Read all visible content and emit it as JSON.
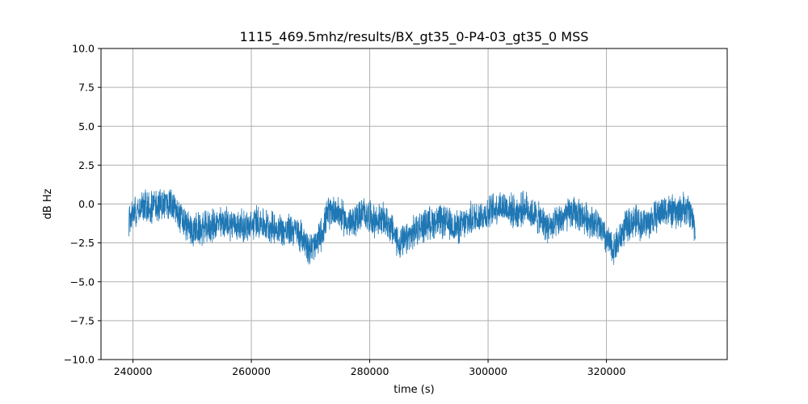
{
  "chart_data": {
    "type": "line",
    "title": "1115_469.5mhz/results/BX_gt35_0-P4-03_gt35_0 MSS",
    "xlabel": "time (s)",
    "ylabel": "dB Hz",
    "xlim": [
      234600,
      340400
    ],
    "ylim": [
      -10.0,
      10.0
    ],
    "grid": true,
    "legend": "none",
    "x_ticks": [
      240000,
      260000,
      280000,
      300000,
      320000
    ],
    "x_tick_labels": [
      "240000",
      "260000",
      "280000",
      "300000",
      "320000"
    ],
    "y_ticks": [
      10.0,
      7.5,
      5.0,
      2.5,
      0.0,
      -2.5,
      -5.0,
      -7.5,
      -10.0
    ],
    "y_tick_labels": [
      "10.0",
      "7.5",
      "5.0",
      "2.5",
      "0.0",
      "−2.5",
      "−5.0",
      "−7.5",
      "−10.0"
    ],
    "series": [
      {
        "color": "#1f77b4",
        "noise_amplitude": 1.2,
        "x": [
          239300,
          240000,
          241000,
          242000,
          243000,
          244000,
          245000,
          246000,
          247000,
          248000,
          249000,
          250000,
          252000,
          254000,
          256000,
          258000,
          260000,
          261000,
          262000,
          264000,
          266000,
          267000,
          268000,
          269000,
          270000,
          271000,
          272000,
          273000,
          274000,
          275000,
          276000,
          277000,
          278000,
          279000,
          280000,
          281000,
          282000,
          283000,
          284000,
          285000,
          286000,
          287000,
          288000,
          290000,
          292000,
          294000,
          295000,
          296000,
          297000,
          298000,
          299000,
          300000,
          301000,
          302000,
          303000,
          304000,
          305000,
          306000,
          307000,
          308000,
          309000,
          310000,
          311000,
          312000,
          313000,
          314000,
          315000,
          316000,
          317000,
          318000,
          319000,
          320000,
          321000,
          322000,
          323000,
          324000,
          325000,
          326000,
          327000,
          328000,
          329000,
          330000,
          331000,
          332000,
          333000,
          334000,
          335000
        ],
        "y": [
          -1.0,
          -0.5,
          -0.2,
          -0.1,
          -0.3,
          0.0,
          -0.1,
          0.1,
          -0.3,
          -0.9,
          -1.4,
          -1.7,
          -1.6,
          -1.3,
          -1.2,
          -1.4,
          -1.5,
          -1.0,
          -1.3,
          -1.5,
          -1.8,
          -1.6,
          -1.9,
          -2.3,
          -2.9,
          -2.6,
          -1.7,
          -0.6,
          -0.3,
          -0.7,
          -1.1,
          -1.3,
          -0.8,
          -0.6,
          -0.8,
          -1.1,
          -1.0,
          -1.2,
          -1.8,
          -2.6,
          -2.4,
          -2.0,
          -1.6,
          -1.2,
          -1.1,
          -1.4,
          -1.5,
          -1.3,
          -1.0,
          -0.8,
          -0.7,
          -0.6,
          -0.3,
          -0.1,
          -0.2,
          -0.4,
          -0.6,
          -0.2,
          -0.4,
          -0.8,
          -1.1,
          -1.4,
          -1.5,
          -1.1,
          -0.8,
          -0.6,
          -0.6,
          -0.8,
          -1.0,
          -1.2,
          -1.6,
          -2.3,
          -2.9,
          -2.4,
          -1.6,
          -1.2,
          -1.1,
          -1.3,
          -1.2,
          -0.9,
          -0.6,
          -0.3,
          -0.5,
          -0.6,
          -0.3,
          -0.4,
          -1.5
        ]
      }
    ]
  }
}
